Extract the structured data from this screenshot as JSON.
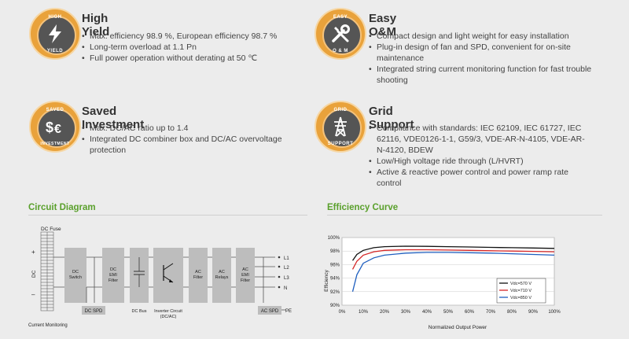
{
  "features": [
    {
      "title": "High Yield",
      "badge_top": "HIGH",
      "badge_bottom": "YIELD",
      "icon": "lightning-bolt-icon",
      "bullets": [
        "Max. efficiency 98.9 %, European efficiency 98.7 %",
        "Long-term overload at 1.1 Pn",
        "Full power operation without derating at 50 ℃"
      ]
    },
    {
      "title": "Easy O&M",
      "badge_top": "EASY",
      "badge_bottom": "O & M",
      "icon": "wrench-screwdriver-icon",
      "bullets": [
        "Compact design and light weight for easy installation",
        "Plug-in design of fan and SPD, convenient for on-site maintenance",
        "Integrated string current monitoring function for fast trouble shooting"
      ]
    },
    {
      "title": "Saved Investment",
      "badge_top": "SAVED",
      "badge_bottom": "INVESTMENT",
      "icon": "dollar-euro-icon",
      "bullets": [
        "Max. DC/AC ratio up to 1.4",
        "Integrated DC combiner box and DC/AC overvoltage protection"
      ]
    },
    {
      "title": "Grid Support",
      "badge_top": "GRID",
      "badge_bottom": "SUPPORT",
      "icon": "transmission-tower-icon",
      "bullets": [
        "Compliance with standards: IEC 62109, IEC 61727, IEC 62116, VDE0126-1-1, G59/3, VDE-AR-N-4105, VDE-AR-N-4120, BDEW",
        "Low/High voltage ride through (L/HVRT)",
        "Active & reactive power control and power ramp rate control"
      ]
    }
  ],
  "colors": {
    "accent_orange": "#e9a23b",
    "heading_green": "#5aa02c",
    "block_gray": "#bdbdbd"
  },
  "circuit": {
    "title": "Circuit Diagram",
    "dc_fuse": "DC Fuse",
    "dc_side": "DC",
    "plus": "+",
    "minus": "–",
    "current_monitoring": "Current Monitoring",
    "dc_switch": [
      "DC",
      "Switch"
    ],
    "dc_emi": [
      "DC",
      "EMI",
      "Filter"
    ],
    "inverter": [
      "Inverter Circuit",
      "(DC/AC)"
    ],
    "ac_filter": [
      "AC",
      "Filter"
    ],
    "ac_relays": [
      "AC",
      "Relays"
    ],
    "ac_emi": [
      "AC",
      "EMI",
      "Filter"
    ],
    "dc_spd": "DC SPD",
    "dc_bus": "DC Bus",
    "ac_spd": "AC SPD",
    "pe": "PE",
    "outputs": [
      "L1",
      "L2",
      "L3",
      "N"
    ]
  },
  "efficiency": {
    "title": "Efficiency Curve",
    "chart_data": {
      "type": "line",
      "xlabel": "Normalized Output Power",
      "ylabel": "Efficiency",
      "xlim": [
        0,
        100
      ],
      "ylim": [
        90,
        100
      ],
      "x_ticks": [
        "0%",
        "10%",
        "20%",
        "30%",
        "40%",
        "50%",
        "60%",
        "70%",
        "80%",
        "90%",
        "100%"
      ],
      "y_ticks": [
        "90%",
        "92%",
        "94%",
        "96%",
        "98%",
        "100%"
      ],
      "grid": "horizontal",
      "legend_position": "bottom-right",
      "x": [
        5,
        7,
        10,
        15,
        20,
        30,
        40,
        50,
        60,
        70,
        80,
        90,
        100
      ],
      "series": [
        {
          "name": "Vdc=570 V",
          "color": "#111111",
          "values": [
            96.6,
            97.5,
            98.1,
            98.5,
            98.65,
            98.72,
            98.7,
            98.65,
            98.6,
            98.55,
            98.5,
            98.45,
            98.4
          ]
        },
        {
          "name": "Vdc=710 V",
          "color": "#d62728",
          "values": [
            95.3,
            96.5,
            97.4,
            97.9,
            98.1,
            98.2,
            98.2,
            98.15,
            98.1,
            98.05,
            98.0,
            97.95,
            97.9
          ]
        },
        {
          "name": "Vdc=850 V",
          "color": "#1f5fbf",
          "values": [
            92.0,
            94.5,
            96.2,
            97.0,
            97.4,
            97.7,
            97.8,
            97.8,
            97.75,
            97.7,
            97.6,
            97.5,
            97.4
          ]
        }
      ]
    }
  }
}
